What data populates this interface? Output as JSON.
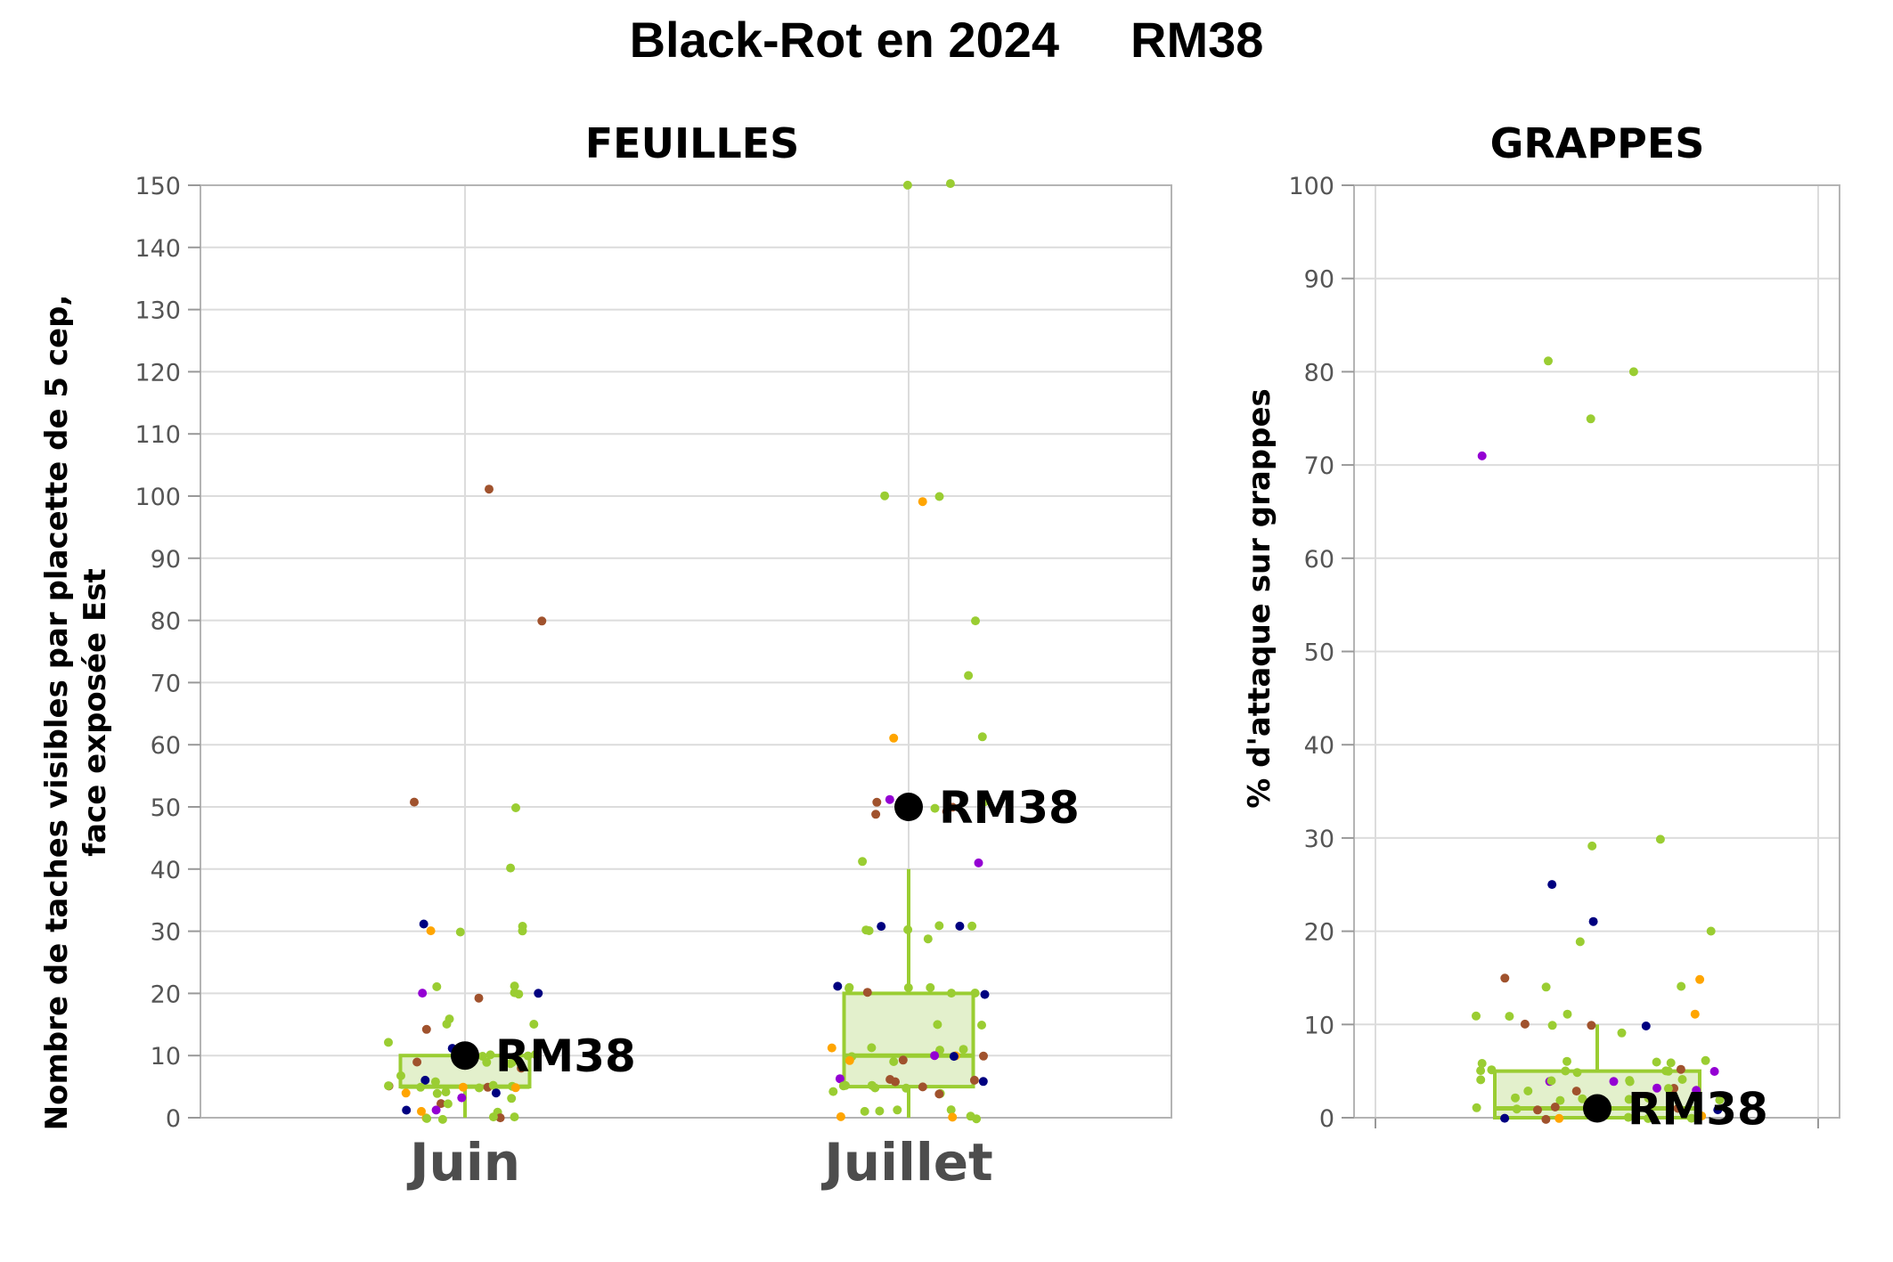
{
  "title": "Black-Rot en 2024",
  "subtitle": "RM38",
  "colors": {
    "box_fill": "#e3f0cc",
    "box_stroke": "#9acd32",
    "green": "#9acd32",
    "brown": "#a0522d",
    "navy": "#000080",
    "purple": "#9400d3",
    "orange": "#ffa500",
    "highlight": "#000000",
    "grid": "#dcdcdc",
    "frame": "#b4b4b4"
  },
  "chart_data": [
    {
      "type": "box",
      "title": "FEUILLES",
      "ylabel_line1": "Nombre de taches visibles par placette de 5 cep,",
      "ylabel_line2": "face exposée Est",
      "ylim": [
        0,
        150
      ],
      "yticks": [
        0,
        10,
        20,
        30,
        40,
        50,
        60,
        70,
        80,
        90,
        100,
        110,
        120,
        130,
        140,
        150
      ],
      "grid": true,
      "categories": [
        "Juin",
        "Juillet"
      ],
      "boxes": [
        {
          "category": "Juin",
          "q1": 5,
          "median": 5,
          "q3": 10,
          "whisker_low": 0,
          "whisker_high": 10
        },
        {
          "category": "Juillet",
          "q1": 5,
          "median": 10,
          "q3": 20,
          "whisker_low": 0,
          "whisker_high": 40
        }
      ],
      "highlight": [
        {
          "category": "Juin",
          "value": 10,
          "label": "RM38"
        },
        {
          "category": "Juillet",
          "value": 50,
          "label": "RM38"
        }
      ],
      "points": [
        {
          "category": "Juin",
          "values": [
            101,
            80,
            51,
            50,
            40,
            31,
            31,
            30,
            30,
            30,
            21,
            21,
            20,
            20,
            20,
            20,
            19,
            16,
            15,
            15,
            14,
            12,
            11,
            11,
            10,
            10,
            10,
            10,
            10,
            9,
            9,
            9,
            9,
            8,
            7,
            6,
            6,
            5,
            5,
            5,
            5,
            5,
            5,
            5,
            5,
            5,
            4,
            4,
            4,
            4,
            3,
            3,
            2,
            2,
            1,
            1,
            1,
            1,
            0,
            0,
            0,
            0,
            0,
            0
          ]
        },
        {
          "category": "Juillet",
          "values": [
            150,
            150,
            100,
            100,
            99,
            80,
            71,
            61,
            61,
            51,
            51,
            51,
            50,
            50,
            50,
            49,
            49,
            41,
            41,
            31,
            31,
            31,
            31,
            30,
            30,
            30,
            29,
            21,
            21,
            21,
            21,
            21,
            20,
            20,
            20,
            20,
            15,
            15,
            11,
            11,
            11,
            11,
            10,
            10,
            10,
            10,
            10,
            9,
            9,
            9,
            6,
            6,
            6,
            6,
            6,
            5,
            5,
            5,
            5,
            5,
            5,
            4,
            4,
            4,
            1,
            1,
            1,
            1,
            0,
            0,
            0,
            0
          ]
        }
      ]
    },
    {
      "type": "box",
      "title": "GRAPPES",
      "ylabel": "% d'attaque sur grappes",
      "ylim": [
        0,
        100
      ],
      "yticks": [
        0,
        10,
        20,
        30,
        40,
        50,
        60,
        70,
        80,
        90,
        100
      ],
      "grid": true,
      "boxes": [
        {
          "q1": 0,
          "median": 1,
          "q3": 5,
          "whisker_low": 0,
          "whisker_high": 10
        }
      ],
      "highlight": [
        {
          "value": 1,
          "label": "RM38"
        }
      ],
      "points": [
        81,
        80,
        75,
        71,
        30,
        29,
        25,
        21,
        20,
        19,
        15,
        15,
        14,
        14,
        11,
        11,
        11,
        11,
        10,
        10,
        10,
        10,
        9,
        6,
        6,
        6,
        6,
        6,
        5,
        5,
        5,
        5,
        5,
        5,
        5,
        5,
        4,
        4,
        4,
        4,
        4,
        4,
        4,
        3,
        3,
        3,
        3,
        3,
        3,
        2,
        2,
        2,
        2,
        2,
        2,
        1,
        1,
        1,
        1,
        1,
        1,
        1,
        0,
        0,
        0,
        0,
        0,
        0,
        0
      ]
    }
  ]
}
